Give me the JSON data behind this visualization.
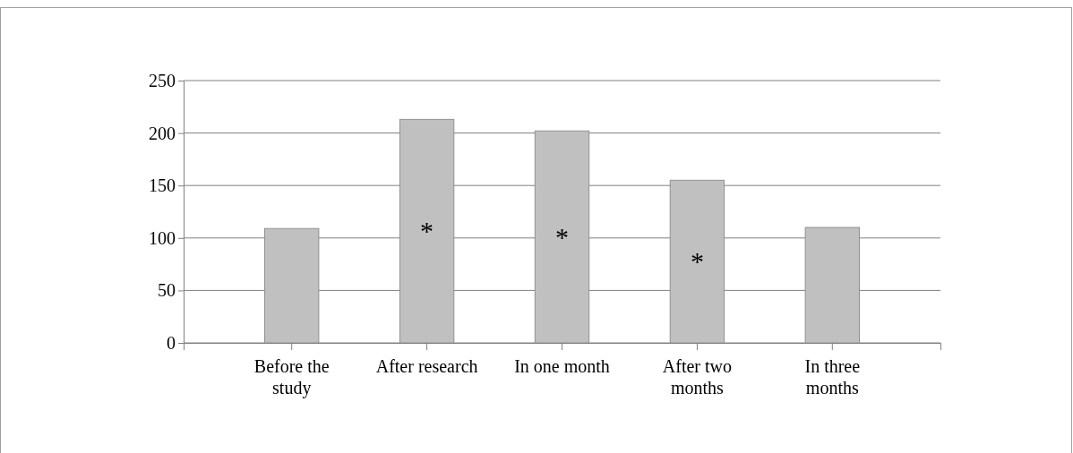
{
  "chart_data": {
    "type": "bar",
    "categories": [
      "Before the study",
      "After research",
      "In one month",
      "After two months",
      "In three months"
    ],
    "values": [
      109,
      213,
      202,
      155,
      110
    ],
    "color": "#c0c0c0",
    "ylim": [
      0,
      250
    ],
    "yticks": [
      0,
      50,
      100,
      150,
      200,
      250
    ],
    "grid": "y",
    "annotations": [
      "*",
      "*",
      "*"
    ]
  }
}
